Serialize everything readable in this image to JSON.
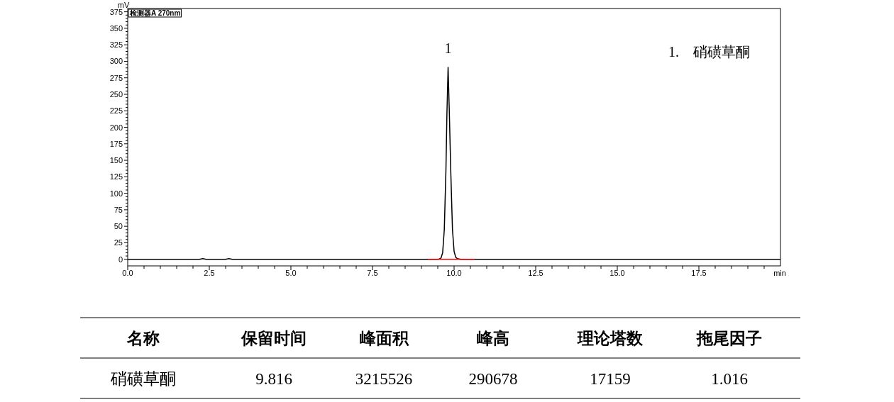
{
  "chart_data": {
    "type": "line",
    "ylabel": "mV",
    "xlabel": "min",
    "xlim": [
      0,
      20
    ],
    "ylim": [
      -10,
      380
    ],
    "xticks": [
      {
        "value": 0,
        "label": "0.0"
      },
      {
        "value": 2.5,
        "label": "2.5"
      },
      {
        "value": 5,
        "label": "5.0"
      },
      {
        "value": 7.5,
        "label": "7.5"
      },
      {
        "value": 10,
        "label": "10.0"
      },
      {
        "value": 12.5,
        "label": "12.5"
      },
      {
        "value": 15,
        "label": "15.0"
      },
      {
        "value": 17.5,
        "label": "17.5"
      }
    ],
    "yticks": [
      0,
      25,
      50,
      75,
      100,
      125,
      150,
      175,
      200,
      225,
      250,
      275,
      300,
      325,
      350,
      375
    ],
    "series": [
      {
        "color": "#000000",
        "x": [
          0,
          2.2,
          2.3,
          2.4,
          3.0,
          3.1,
          3.2,
          9.5,
          9.55,
          9.6,
          9.65,
          9.7,
          9.75,
          9.78,
          9.816,
          9.85,
          9.9,
          9.95,
          10.0,
          10.05,
          10.1,
          10.2,
          20
        ],
        "values": [
          0,
          0,
          1,
          0,
          0,
          1,
          0,
          0,
          0.5,
          2,
          10,
          45,
          135,
          220,
          290.7,
          230,
          130,
          45,
          12,
          3,
          1,
          0,
          0
        ]
      },
      {
        "color": "#ff0000",
        "x": [
          9.2,
          10.63
        ],
        "values": [
          0,
          0
        ]
      }
    ],
    "annotations": [
      "检测器A 270nm",
      {
        "text": "1",
        "x": 9.816,
        "y": 290.7
      },
      "1.    硝磺草酮",
      "名称",
      "保留时间",
      "峰面积",
      "峰高",
      "理论塔数",
      "拖尾因子",
      "硝磺草酮",
      "9.816",
      "3215526",
      "290678",
      "17159",
      "1.016"
    ]
  }
}
